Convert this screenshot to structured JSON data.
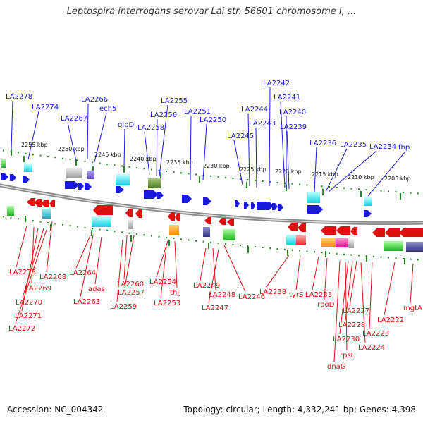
{
  "title": "Leptospira interrogans serovar Lai str. 56601 chromosome I, ...",
  "footer": {
    "accession": "Accession: NC_004342",
    "topology": "Topology: circular; Length: 4,332,241 bp; Genes: 4,398"
  },
  "colors": {
    "forward": "#1a1adc",
    "reverse": "#e01010",
    "tick": "#1f8a1f",
    "backbone": "#8a8a8a"
  },
  "scale_labels": [
    "2255 kbp",
    "2250 kbp",
    "2245 kbp",
    "2240 kbp",
    "2235 kbp",
    "2230 kbp",
    "2225 kbp",
    "2220 kbp",
    "2215 kbp",
    "2210 kbp",
    "2205 kbp"
  ],
  "top_genes": [
    "LA2278",
    "LA2274",
    "LA2267",
    "LA2266",
    "ech5",
    "glpD",
    "LA2258",
    "LA2256",
    "LA2255",
    "LA2251",
    "LA2250",
    "LA2245",
    "LA2244",
    "LA2243",
    "LA2242",
    "LA2241",
    "LA2240",
    "LA2239",
    "LA2236",
    "LA2235",
    "LA2234",
    "fbp"
  ],
  "bottom_genes": [
    "LA2273",
    "LA2268",
    "LA2269",
    "LA2270",
    "LA2271",
    "LA2272",
    "LA2264",
    "adas",
    "LA2263",
    "LA2260",
    "LA2257",
    "LA2259",
    "LA2254",
    "thiJ",
    "LA2253",
    "LA2249",
    "LA2248",
    "LA2247",
    "LA2246",
    "LA2238",
    "tyrS",
    "LA2233",
    "rpoD",
    "LA2227",
    "LA2228",
    "LA2230",
    "rpsU",
    "dnaG",
    "LA2224",
    "LA2223",
    "LA2222",
    "mgtA"
  ]
}
